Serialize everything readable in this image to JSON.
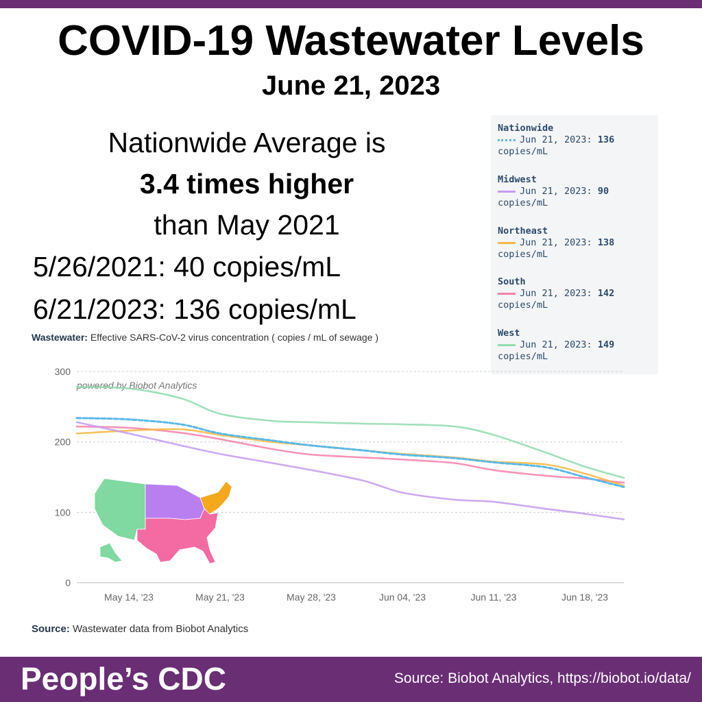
{
  "colors": {
    "brand_purple": "#6a2e75",
    "axis_text": "#666666",
    "grid": "#cccccc"
  },
  "header": {
    "title": "COVID-19 Wastewater Levels",
    "date": "June 21, 2023"
  },
  "headline": {
    "line1": "Nationwide Average is",
    "line2": "3.4 times higher",
    "line3": "than May 2021"
  },
  "stats": {
    "line1": "5/26/2021: 40 copies/mL",
    "line2": "6/21/2023: 136 copies/mL"
  },
  "tooltip": {
    "entries": [
      {
        "region": "Nationwide",
        "date": "Jun 21, 2023:",
        "value": "136",
        "unit": "copies/mL",
        "color": "#5ab8e8",
        "style": "dotted"
      },
      {
        "region": "Midwest",
        "date": "Jun 21, 2023:",
        "value": "90",
        "unit": "copies/mL",
        "color": "#c49bf0",
        "style": "solid"
      },
      {
        "region": "Northeast",
        "date": "Jun 21, 2023:",
        "value": "138",
        "unit": "copies/mL",
        "color": "#f5b840",
        "style": "solid"
      },
      {
        "region": "South",
        "date": "Jun 21, 2023:",
        "value": "142",
        "unit": "copies/mL",
        "color": "#f580ab",
        "style": "solid"
      },
      {
        "region": "West",
        "date": "Jun 21, 2023:",
        "value": "149",
        "unit": "copies/mL",
        "color": "#8fdcae",
        "style": "solid"
      }
    ]
  },
  "chart_label": {
    "bold": "Wastewater:",
    "text": " Effective SARS-CoV-2 virus concentration ( copies / mL of sewage )"
  },
  "chart_data": {
    "type": "line",
    "ylim": [
      0,
      300
    ],
    "yticks": [
      "0",
      "100",
      "200",
      "300"
    ],
    "x": [
      "2023-05-10",
      "2023-05-14",
      "2023-05-18",
      "2023-05-21",
      "2023-05-25",
      "2023-05-28",
      "2023-06-01",
      "2023-06-04",
      "2023-06-08",
      "2023-06-11",
      "2023-06-15",
      "2023-06-18",
      "2023-06-21"
    ],
    "xticks": [
      {
        "date": "2023-05-14",
        "label": "May 14, '23"
      },
      {
        "date": "2023-05-21",
        "label": "May 21, '23"
      },
      {
        "date": "2023-05-28",
        "label": "May 28, '23"
      },
      {
        "date": "2023-06-04",
        "label": "Jun 04, '23"
      },
      {
        "date": "2023-06-11",
        "label": "Jun 11, '23"
      },
      {
        "date": "2023-06-18",
        "label": "Jun 18, '23"
      }
    ],
    "series": [
      {
        "name": "West",
        "color": "#8fdcae",
        "dash": false,
        "values": [
          278,
          276,
          262,
          240,
          230,
          228,
          226,
          225,
          222,
          210,
          185,
          165,
          149
        ]
      },
      {
        "name": "South",
        "color": "#f580ab",
        "dash": false,
        "values": [
          222,
          220,
          213,
          204,
          190,
          182,
          178,
          175,
          170,
          160,
          152,
          148,
          142
        ]
      },
      {
        "name": "Northeast",
        "color": "#f5b840",
        "dash": false,
        "values": [
          212,
          216,
          218,
          210,
          200,
          195,
          188,
          183,
          178,
          172,
          168,
          155,
          138
        ]
      },
      {
        "name": "Midwest",
        "color": "#c49bf0",
        "dash": false,
        "values": [
          228,
          212,
          195,
          183,
          170,
          160,
          145,
          128,
          118,
          115,
          105,
          98,
          90
        ]
      },
      {
        "name": "Nationwide",
        "color": "#5ab8e8",
        "dash": true,
        "values": [
          234,
          232,
          225,
          212,
          202,
          195,
          188,
          182,
          177,
          171,
          164,
          150,
          136
        ]
      }
    ],
    "watermark": "powered by Biobot Analytics"
  },
  "source_label": {
    "bold": "Source:",
    "text": " Wastewater data from Biobot Analytics"
  },
  "footer": {
    "logo": "People’s CDC",
    "source": "Source: Biobot Analytics, https://biobot.io/data/"
  },
  "map": {
    "regions": [
      {
        "name": "West",
        "color": "#7fd9a0"
      },
      {
        "name": "Midwest",
        "color": "#b97ff0"
      },
      {
        "name": "Northeast",
        "color": "#f4a81c"
      },
      {
        "name": "South",
        "color": "#f46aa3"
      }
    ]
  }
}
